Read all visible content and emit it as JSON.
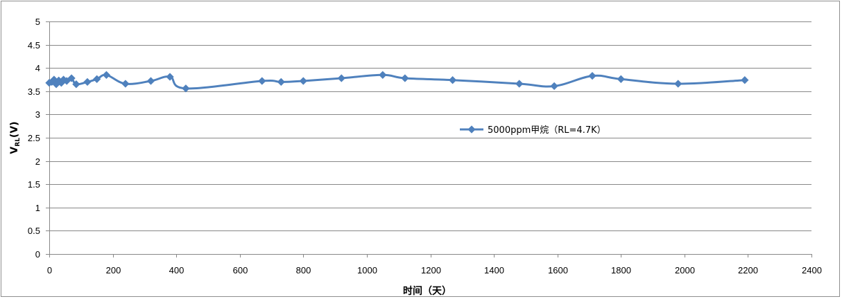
{
  "chart_data": {
    "type": "line",
    "title": "",
    "xlabel": "时间（天）",
    "ylabel_main": "V",
    "ylabel_sub": "RL",
    "ylabel_tail": "(V)",
    "xlim": [
      0,
      2400
    ],
    "ylim": [
      0,
      5
    ],
    "x_ticks": [
      "0",
      "200",
      "400",
      "600",
      "800",
      "1000",
      "1200",
      "1400",
      "1600",
      "1800",
      "2000",
      "2200",
      "2400"
    ],
    "y_ticks": [
      "0",
      "0.5",
      "1",
      "1.5",
      "2",
      "2.5",
      "3",
      "3.5",
      "4",
      "4.5",
      "5"
    ],
    "grid": "horizontal",
    "legend_position": "center-right",
    "series": [
      {
        "name": "5000ppm甲烷（RL=4.7K）",
        "color": "#4f81bd",
        "marker": "diamond",
        "x": [
          0,
          8,
          15,
          22,
          30,
          38,
          45,
          55,
          70,
          85,
          120,
          150,
          180,
          240,
          320,
          380,
          430,
          670,
          730,
          800,
          920,
          1050,
          1120,
          1270,
          1480,
          1590,
          1710,
          1800,
          1980,
          2190
        ],
        "y": [
          3.68,
          3.7,
          3.75,
          3.65,
          3.73,
          3.68,
          3.75,
          3.72,
          3.78,
          3.65,
          3.7,
          3.76,
          3.85,
          3.66,
          3.72,
          3.81,
          3.56,
          3.72,
          3.7,
          3.72,
          3.78,
          3.85,
          3.78,
          3.74,
          3.66,
          3.61,
          3.83,
          3.76,
          3.66,
          3.74
        ]
      }
    ]
  }
}
